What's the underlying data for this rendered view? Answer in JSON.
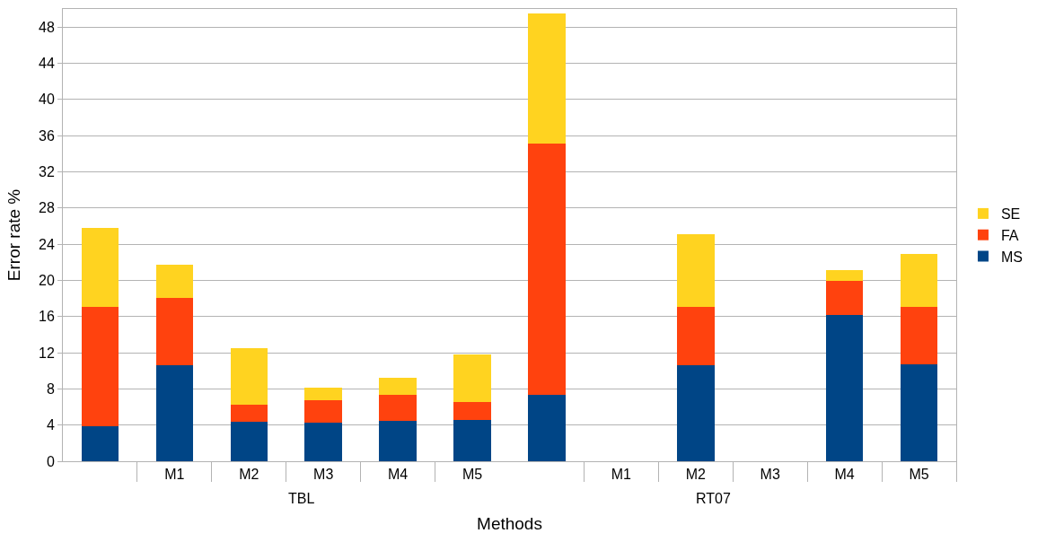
{
  "chart_data": {
    "type": "bar",
    "stacked": true,
    "xlabel": "Methods",
    "ylabel": "Error rate %",
    "categories": [
      null,
      "M1",
      "M2",
      "M3",
      "M4",
      "M5",
      null,
      "M1",
      "M2",
      "M3",
      "M4",
      "M5"
    ],
    "series": [
      {
        "name": "MS",
        "color": "#004586",
        "values": [
          3.9,
          10.6,
          4.4,
          4.3,
          4.5,
          4.6,
          7.3,
          null,
          10.6,
          null,
          16.2,
          10.7
        ]
      },
      {
        "name": "FA",
        "color": "#ff420e",
        "values": [
          13.2,
          7.5,
          1.9,
          2.4,
          2.8,
          1.9,
          27.8,
          null,
          6.5,
          null,
          3.7,
          6.4
        ]
      },
      {
        "name": "SE",
        "color": "#ffd320",
        "values": [
          8.7,
          3.6,
          6.2,
          1.4,
          1.9,
          5.3,
          14.4,
          null,
          8.0,
          null,
          1.2,
          5.8
        ]
      }
    ],
    "annotations": [
      "TBL",
      "RT07"
    ],
    "ylim": [
      0,
      50
    ],
    "yticks": [
      0,
      4,
      8,
      12,
      16,
      20,
      24,
      28,
      32,
      36,
      40,
      44,
      48
    ],
    "grid": "y",
    "legend": "right"
  }
}
